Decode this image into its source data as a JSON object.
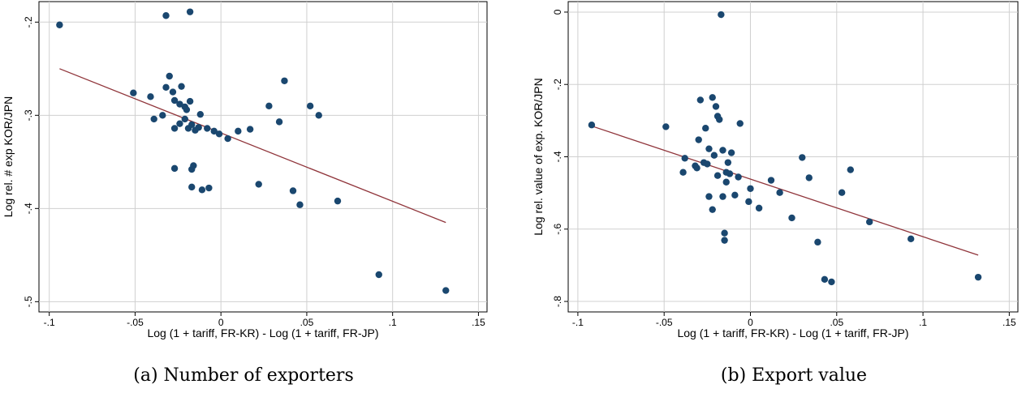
{
  "chart_data": [
    {
      "type": "scatter",
      "caption": "(a) Number of exporters",
      "xlabel": "Log (1 + tariff, FR-KR) - Log (1 + tariff, FR-JP)",
      "ylabel": "Log rel. # exp KOR/JPN",
      "color": "#1a476f",
      "grid": true,
      "xlim": [
        -0.106,
        0.155
      ],
      "ylim": [
        -0.511,
        -0.178
      ],
      "xticks": [
        {
          "value": -0.1,
          "label": "-.1"
        },
        {
          "value": -0.05,
          "label": "-.05"
        },
        0,
        {
          "value": 0.05,
          "label": ".05"
        },
        {
          "value": 0.1,
          "label": ".1"
        },
        {
          "value": 0.15,
          "label": ".15"
        }
      ],
      "yticks": [
        {
          "value": -0.2,
          "label": "-.2"
        },
        {
          "value": -0.3,
          "label": "-.3"
        },
        {
          "value": -0.4,
          "label": "-.4"
        },
        {
          "value": -0.5,
          "label": "-.5"
        }
      ],
      "x": [
        -0.094,
        -0.032,
        -0.018,
        -0.03,
        -0.051,
        -0.041,
        -0.032,
        -0.023,
        -0.028,
        -0.027,
        -0.024,
        -0.018,
        -0.021,
        -0.02,
        -0.039,
        -0.034,
        -0.012,
        -0.021,
        -0.024,
        -0.019,
        -0.017,
        -0.015,
        -0.013,
        -0.027,
        -0.008,
        -0.004,
        -0.001,
        0.004,
        0.01,
        0.017,
        0.028,
        0.034,
        0.037,
        0.052,
        0.057,
        -0.027,
        -0.016,
        -0.017,
        -0.017,
        -0.011,
        -0.007,
        0.022,
        0.042,
        0.046,
        0.068,
        0.092,
        0.131
      ],
      "values": [
        -0.203,
        -0.193,
        -0.189,
        -0.258,
        -0.276,
        -0.28,
        -0.27,
        -0.269,
        -0.275,
        -0.284,
        -0.288,
        -0.285,
        -0.291,
        -0.294,
        -0.304,
        -0.3,
        -0.299,
        -0.304,
        -0.309,
        -0.314,
        -0.31,
        -0.316,
        -0.313,
        -0.314,
        -0.314,
        -0.317,
        -0.32,
        -0.325,
        -0.317,
        -0.315,
        -0.29,
        -0.307,
        -0.263,
        -0.29,
        -0.3,
        -0.357,
        -0.354,
        -0.358,
        -0.377,
        -0.38,
        -0.378,
        -0.374,
        -0.381,
        -0.396,
        -0.392,
        -0.471,
        -0.488
      ],
      "fit_line": {
        "color": "#90353b",
        "x": [
          -0.094,
          0.131
        ],
        "values": [
          -0.25,
          -0.415
        ]
      }
    },
    {
      "type": "scatter",
      "caption": "(b) Export value",
      "xlabel": "Log (1 + tariff, FR-KR) - Log (1 + tariff, FR-JP)",
      "ylabel": "Log rel. value of exp. KOR/JPN",
      "color": "#1a476f",
      "grid": true,
      "xlim": [
        -0.1056,
        0.155
      ],
      "ylim": [
        -0.829,
        0.029
      ],
      "xticks": [
        {
          "value": -0.1,
          "label": "-.1"
        },
        {
          "value": -0.05,
          "label": "-.05"
        },
        0,
        {
          "value": 0.05,
          "label": ".05"
        },
        {
          "value": 0.1,
          "label": ".1"
        },
        {
          "value": 0.15,
          "label": ".15"
        }
      ],
      "yticks": [
        0,
        {
          "value": -0.2,
          "label": "-.2"
        },
        {
          "value": -0.4,
          "label": "-.4"
        },
        {
          "value": -0.6,
          "label": "-.6"
        },
        {
          "value": -0.8,
          "label": "-.8"
        }
      ],
      "x": [
        -0.092,
        -0.049,
        -0.017,
        -0.022,
        -0.029,
        -0.02,
        -0.019,
        -0.018,
        -0.006,
        -0.026,
        -0.03,
        -0.024,
        -0.016,
        -0.011,
        -0.021,
        -0.038,
        -0.027,
        -0.025,
        -0.032,
        -0.031,
        -0.039,
        -0.013,
        -0.014,
        -0.012,
        -0.007,
        -0.019,
        -0.014,
        -0.024,
        -0.009,
        -0.016,
        0.0,
        -0.001,
        -0.022,
        0.005,
        0.012,
        0.017,
        0.024,
        0.03,
        0.034,
        0.053,
        0.058,
        0.039,
        0.069,
        0.093,
        -0.015,
        -0.015,
        0.043,
        0.047,
        0.132
      ],
      "values": [
        -0.312,
        -0.317,
        -0.007,
        -0.236,
        -0.243,
        -0.261,
        -0.288,
        -0.297,
        -0.308,
        -0.321,
        -0.353,
        -0.378,
        -0.382,
        -0.389,
        -0.396,
        -0.404,
        -0.416,
        -0.42,
        -0.425,
        -0.431,
        -0.443,
        -0.416,
        -0.443,
        -0.447,
        -0.456,
        -0.452,
        -0.47,
        -0.51,
        -0.506,
        -0.51,
        -0.488,
        -0.524,
        -0.546,
        -0.542,
        -0.465,
        -0.499,
        -0.569,
        -0.402,
        -0.458,
        -0.499,
        -0.436,
        -0.636,
        -0.58,
        -0.627,
        -0.611,
        -0.631,
        -0.739,
        -0.746,
        -0.733
      ],
      "fit_line": {
        "color": "#90353b",
        "x": [
          -0.092,
          0.132
        ],
        "values": [
          -0.315,
          -0.672
        ]
      }
    }
  ]
}
